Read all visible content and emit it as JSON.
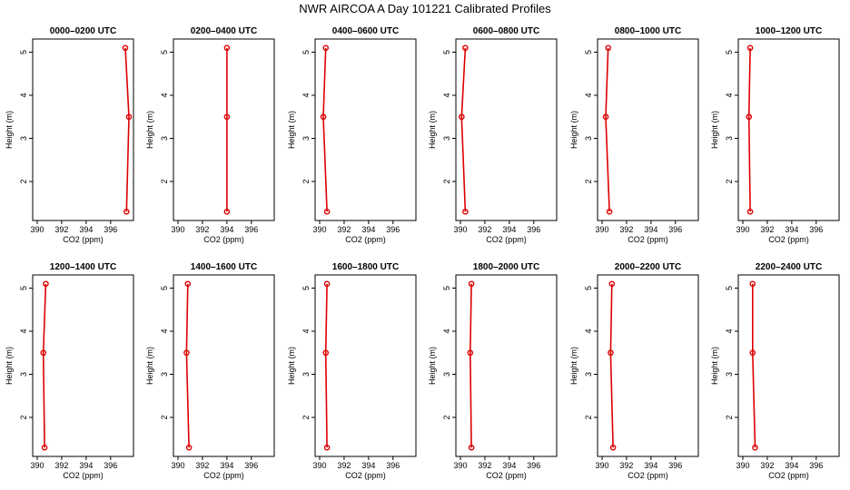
{
  "title": "NWR AIRCOA A  Day 101221  Calibrated Profiles",
  "colors": {
    "profile": "#dd0000",
    "axis": "#000000",
    "background": "#ffffff"
  },
  "chart_data": [
    {
      "type": "line",
      "title": "0000–0200 UTC",
      "xlabel": "CO2 (ppm)",
      "ylabel": "Height (m)",
      "xlim": [
        390,
        397.5
      ],
      "ylim": [
        1.2,
        5.2
      ],
      "x_ticks": [
        "390",
        "392",
        "394",
        "396"
      ],
      "y_ticks": [
        "2",
        "3",
        "4",
        "5"
      ],
      "points": [
        {
          "x": 397.3,
          "y": 1.3
        },
        {
          "x": 397.5,
          "y": 3.5
        },
        {
          "x": 397.2,
          "y": 5.1
        }
      ]
    },
    {
      "type": "line",
      "title": "0200–0400 UTC",
      "xlabel": "CO2 (ppm)",
      "ylabel": "Height (m)",
      "xlim": [
        390,
        397.5
      ],
      "ylim": [
        1.2,
        5.2
      ],
      "x_ticks": [
        "390",
        "392",
        "394",
        "396"
      ],
      "y_ticks": [
        "2",
        "3",
        "4",
        "5"
      ],
      "points": [
        {
          "x": 394.0,
          "y": 1.3
        },
        {
          "x": 394.0,
          "y": 3.5
        },
        {
          "x": 394.0,
          "y": 5.1
        }
      ]
    },
    {
      "type": "line",
      "title": "0400–0600 UTC",
      "xlabel": "CO2 (ppm)",
      "ylabel": "Height (m)",
      "xlim": [
        390,
        397.5
      ],
      "ylim": [
        1.2,
        5.2
      ],
      "x_ticks": [
        "390",
        "392",
        "394",
        "396"
      ],
      "y_ticks": [
        "2",
        "3",
        "4",
        "5"
      ],
      "points": [
        {
          "x": 390.6,
          "y": 1.3
        },
        {
          "x": 390.3,
          "y": 3.5
        },
        {
          "x": 390.5,
          "y": 5.1
        }
      ]
    },
    {
      "type": "line",
      "title": "0600–0800 UTC",
      "xlabel": "CO2 (ppm)",
      "ylabel": "Height (m)",
      "xlim": [
        390,
        397.5
      ],
      "ylim": [
        1.2,
        5.2
      ],
      "x_ticks": [
        "390",
        "392",
        "394",
        "396"
      ],
      "y_ticks": [
        "2",
        "3",
        "4",
        "5"
      ],
      "points": [
        {
          "x": 390.4,
          "y": 1.3
        },
        {
          "x": 390.1,
          "y": 3.5
        },
        {
          "x": 390.4,
          "y": 5.1
        }
      ]
    },
    {
      "type": "line",
      "title": "0800–1000 UTC",
      "xlabel": "CO2 (ppm)",
      "ylabel": "Height (m)",
      "xlim": [
        390,
        397.5
      ],
      "ylim": [
        1.2,
        5.2
      ],
      "x_ticks": [
        "390",
        "392",
        "394",
        "396"
      ],
      "y_ticks": [
        "2",
        "3",
        "4",
        "5"
      ],
      "points": [
        {
          "x": 390.6,
          "y": 1.3
        },
        {
          "x": 390.3,
          "y": 3.5
        },
        {
          "x": 390.5,
          "y": 5.1
        }
      ]
    },
    {
      "type": "line",
      "title": "1000–1200 UTC",
      "xlabel": "CO2 (ppm)",
      "ylabel": "Height (m)",
      "xlim": [
        390,
        397.5
      ],
      "ylim": [
        1.2,
        5.2
      ],
      "x_ticks": [
        "390",
        "392",
        "394",
        "396"
      ],
      "y_ticks": [
        "2",
        "3",
        "4",
        "5"
      ],
      "points": [
        {
          "x": 390.6,
          "y": 1.3
        },
        {
          "x": 390.5,
          "y": 3.5
        },
        {
          "x": 390.6,
          "y": 5.1
        }
      ]
    },
    {
      "type": "line",
      "title": "1200–1400 UTC",
      "xlabel": "CO2 (ppm)",
      "ylabel": "Height (m)",
      "xlim": [
        390,
        397.5
      ],
      "ylim": [
        1.2,
        5.2
      ],
      "x_ticks": [
        "390",
        "392",
        "394",
        "396"
      ],
      "y_ticks": [
        "2",
        "3",
        "4",
        "5"
      ],
      "points": [
        {
          "x": 390.6,
          "y": 1.3
        },
        {
          "x": 390.5,
          "y": 3.5
        },
        {
          "x": 390.7,
          "y": 5.1
        }
      ]
    },
    {
      "type": "line",
      "title": "1400–1600 UTC",
      "xlabel": "CO2 (ppm)",
      "ylabel": "Height (m)",
      "xlim": [
        390,
        397.5
      ],
      "ylim": [
        1.2,
        5.2
      ],
      "x_ticks": [
        "390",
        "392",
        "394",
        "396"
      ],
      "y_ticks": [
        "2",
        "3",
        "4",
        "5"
      ],
      "points": [
        {
          "x": 390.9,
          "y": 1.3
        },
        {
          "x": 390.7,
          "y": 3.5
        },
        {
          "x": 390.8,
          "y": 5.1
        }
      ]
    },
    {
      "type": "line",
      "title": "1600–1800 UTC",
      "xlabel": "CO2 (ppm)",
      "ylabel": "Height (m)",
      "xlim": [
        390,
        397.5
      ],
      "ylim": [
        1.2,
        5.2
      ],
      "x_ticks": [
        "390",
        "392",
        "394",
        "396"
      ],
      "y_ticks": [
        "2",
        "3",
        "4",
        "5"
      ],
      "points": [
        {
          "x": 390.6,
          "y": 1.3
        },
        {
          "x": 390.5,
          "y": 3.5
        },
        {
          "x": 390.6,
          "y": 5.1
        }
      ]
    },
    {
      "type": "line",
      "title": "1800–2000 UTC",
      "xlabel": "CO2 (ppm)",
      "ylabel": "Height (m)",
      "xlim": [
        390,
        397.5
      ],
      "ylim": [
        1.2,
        5.2
      ],
      "x_ticks": [
        "390",
        "392",
        "394",
        "396"
      ],
      "y_ticks": [
        "2",
        "3",
        "4",
        "5"
      ],
      "points": [
        {
          "x": 390.9,
          "y": 1.3
        },
        {
          "x": 390.8,
          "y": 3.5
        },
        {
          "x": 390.9,
          "y": 5.1
        }
      ]
    },
    {
      "type": "line",
      "title": "2000–2200 UTC",
      "xlabel": "CO2 (ppm)",
      "ylabel": "Height (m)",
      "xlim": [
        390,
        397.5
      ],
      "ylim": [
        1.2,
        5.2
      ],
      "x_ticks": [
        "390",
        "392",
        "394",
        "396"
      ],
      "y_ticks": [
        "2",
        "3",
        "4",
        "5"
      ],
      "points": [
        {
          "x": 390.9,
          "y": 1.3
        },
        {
          "x": 390.7,
          "y": 3.5
        },
        {
          "x": 390.8,
          "y": 5.1
        }
      ]
    },
    {
      "type": "line",
      "title": "2200–2400 UTC",
      "xlabel": "CO2 (ppm)",
      "ylabel": "Height (m)",
      "xlim": [
        390,
        397.5
      ],
      "ylim": [
        1.2,
        5.2
      ],
      "x_ticks": [
        "390",
        "392",
        "394",
        "396"
      ],
      "y_ticks": [
        "2",
        "3",
        "4",
        "5"
      ],
      "points": [
        {
          "x": 391.0,
          "y": 1.3
        },
        {
          "x": 390.8,
          "y": 3.5
        },
        {
          "x": 390.8,
          "y": 5.1
        }
      ]
    }
  ]
}
